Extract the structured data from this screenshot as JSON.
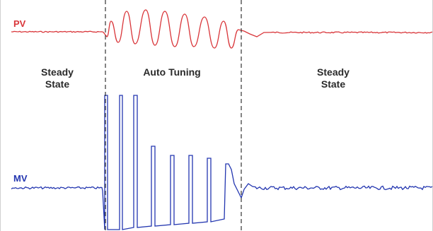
{
  "signals": {
    "pv": {
      "label": "PV",
      "color": "#d9363a"
    },
    "mv": {
      "label": "MV",
      "color": "#2336b0"
    }
  },
  "phases": {
    "left": {
      "line1": "Steady",
      "line2": "State"
    },
    "middle": {
      "line1": "Auto Tuning"
    },
    "right": {
      "line1": "Steady",
      "line2": "State"
    }
  },
  "colors": {
    "divider": "#333333"
  }
}
